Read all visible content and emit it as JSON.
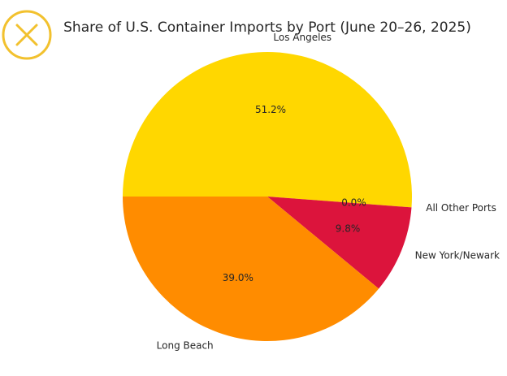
{
  "chart_data": {
    "type": "pie",
    "title": "Share of U.S. Container Imports by Port (June 20–26, 2025)",
    "start_angle_deg": 180,
    "direction": "clockwise",
    "slices": [
      {
        "label": "Los Angeles",
        "value": 51.2,
        "pct_text": "51.2%",
        "color": "#FFD700"
      },
      {
        "label": "All Other Ports",
        "value": 0.0,
        "pct_text": "0.0%",
        "color": "#FFD700"
      },
      {
        "label": "New York/Newark",
        "value": 9.8,
        "pct_text": "9.8%",
        "color": "#DC143C"
      },
      {
        "label": "Long Beach",
        "value": 39.0,
        "pct_text": "39.0%",
        "color": "#FF8C00"
      }
    ]
  },
  "logo": {
    "icon": "x-circle-logo-icon",
    "color": "#F2C12E"
  }
}
